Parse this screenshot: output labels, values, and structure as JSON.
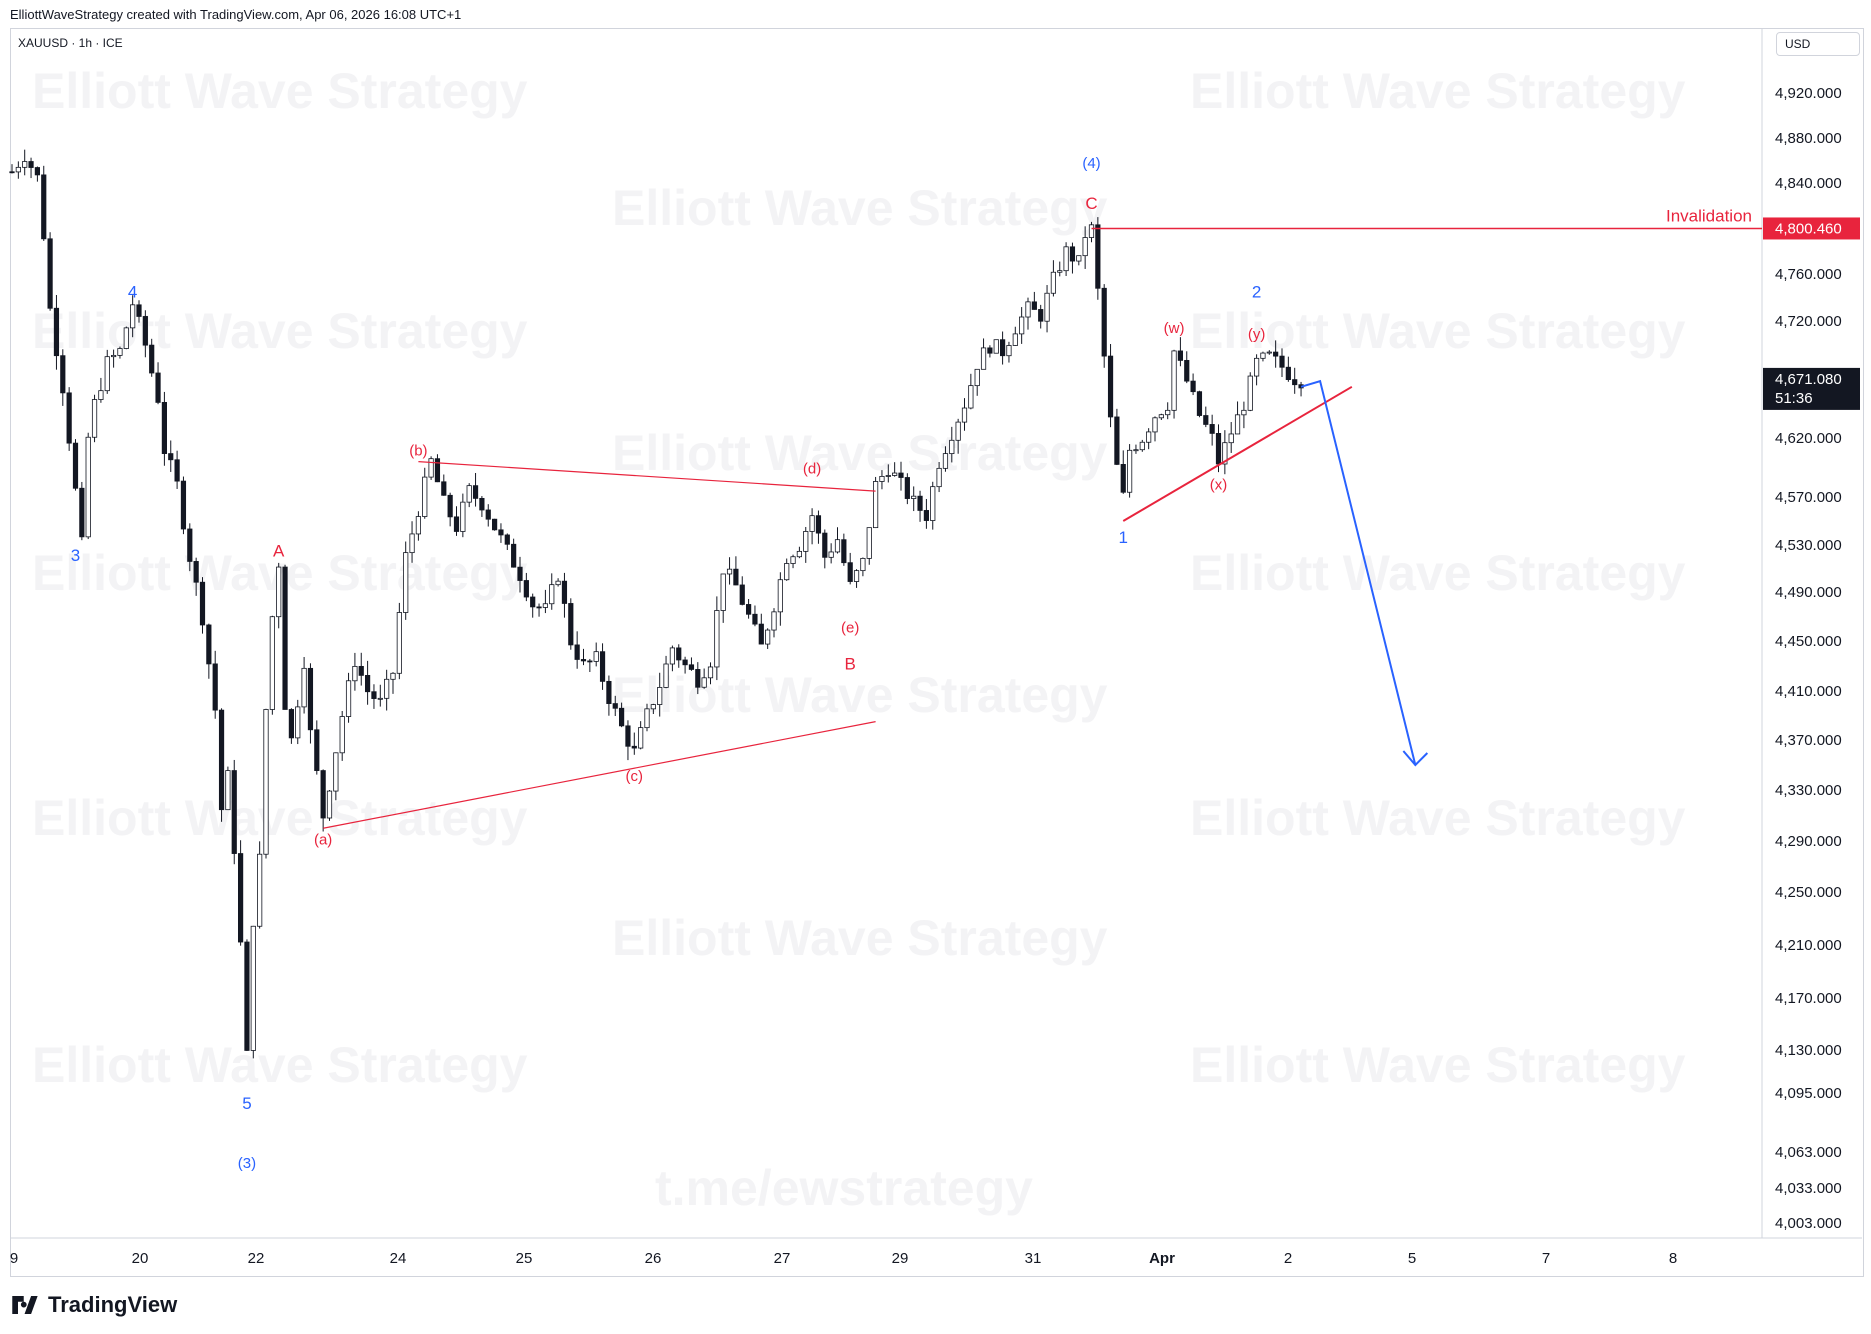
{
  "header": {
    "attribution": "ElliottWaveStrategy created with TradingView.com, Apr 06, 2026 16:08 UTC+1"
  },
  "symbol": {
    "label": "XAUUSD · 1h · ICE"
  },
  "currency": {
    "label": "USD"
  },
  "watermark": {
    "text": "Elliott Wave Strategy",
    "link": "t.me/ewstrategy"
  },
  "branding": {
    "name": "TradingView"
  },
  "colors": {
    "up": "#131722",
    "down": "#131722",
    "red": "#e8243d",
    "blue": "#2962ff",
    "grid": "#f0f3fa"
  },
  "chart_data": {
    "type": "candlestick",
    "instrument": "XAUUSD",
    "timeframe": "1h",
    "y_axis": {
      "ticks": [
        "4,920.000",
        "4,880.000",
        "4,840.000",
        "4,760.000",
        "4,720.000",
        "4,620.000",
        "4,570.000",
        "4,530.000",
        "4,490.000",
        "4,450.000",
        "4,410.000",
        "4,370.000",
        "4,330.000",
        "4,290.000",
        "4,250.000",
        "4,210.000",
        "4,170.000",
        "4,130.000",
        "4,095.000",
        "4,063.000",
        "4,033.000",
        "4,003.000"
      ],
      "range": [
        3990,
        4950
      ]
    },
    "x_axis": {
      "ticks": [
        "9",
        "20",
        "22",
        "24",
        "25",
        "26",
        "27",
        "29",
        "31",
        "Apr",
        "2",
        "5",
        "7",
        "8"
      ]
    },
    "current_price": {
      "label": "4,671.080",
      "countdown": "51:36",
      "value": 4671.08
    },
    "invalidation": {
      "label": "Invalidation",
      "price_label": "4,800.460",
      "value": 4800.46
    },
    "path": [
      [
        0,
        4850
      ],
      [
        2,
        4865
      ],
      [
        4,
        4845
      ],
      [
        5,
        4795
      ],
      [
        6,
        4730
      ],
      [
        8,
        4665
      ],
      [
        10,
        4575
      ],
      [
        11,
        4530
      ],
      [
        12,
        4620
      ],
      [
        13,
        4650
      ],
      [
        15,
        4685
      ],
      [
        17,
        4695
      ],
      [
        19,
        4735
      ],
      [
        21,
        4700
      ],
      [
        23,
        4655
      ],
      [
        24,
        4610
      ],
      [
        26,
        4580
      ],
      [
        28,
        4520
      ],
      [
        30,
        4470
      ],
      [
        32,
        4395
      ],
      [
        33,
        4315
      ],
      [
        34,
        4340
      ],
      [
        35,
        4285
      ],
      [
        36,
        4210
      ],
      [
        37,
        4125
      ],
      [
        38,
        4230
      ],
      [
        39,
        4275
      ],
      [
        40,
        4395
      ],
      [
        41,
        4470
      ],
      [
        42,
        4515
      ],
      [
        43,
        4400
      ],
      [
        44,
        4370
      ],
      [
        46,
        4435
      ],
      [
        47,
        4375
      ],
      [
        49,
        4310
      ],
      [
        50,
        4335
      ],
      [
        52,
        4390
      ],
      [
        54,
        4435
      ],
      [
        56,
        4410
      ],
      [
        58,
        4400
      ],
      [
        60,
        4425
      ],
      [
        62,
        4520
      ],
      [
        64,
        4560
      ],
      [
        66,
        4600
      ],
      [
        68,
        4565
      ],
      [
        70,
        4545
      ],
      [
        72,
        4575
      ],
      [
        74,
        4565
      ],
      [
        76,
        4545
      ],
      [
        78,
        4525
      ],
      [
        80,
        4505
      ],
      [
        82,
        4480
      ],
      [
        84,
        4475
      ],
      [
        86,
        4505
      ],
      [
        88,
        4450
      ],
      [
        90,
        4430
      ],
      [
        92,
        4435
      ],
      [
        94,
        4405
      ],
      [
        96,
        4380
      ],
      [
        98,
        4360
      ],
      [
        100,
        4390
      ],
      [
        102,
        4415
      ],
      [
        104,
        4445
      ],
      [
        106,
        4430
      ],
      [
        108,
        4420
      ],
      [
        110,
        4435
      ],
      [
        112,
        4510
      ],
      [
        114,
        4495
      ],
      [
        116,
        4470
      ],
      [
        118,
        4445
      ],
      [
        120,
        4480
      ],
      [
        122,
        4520
      ],
      [
        124,
        4530
      ],
      [
        126,
        4555
      ],
      [
        128,
        4520
      ],
      [
        130,
        4535
      ],
      [
        132,
        4495
      ],
      [
        134,
        4515
      ],
      [
        136,
        4580
      ],
      [
        138,
        4595
      ],
      [
        140,
        4580
      ],
      [
        142,
        4565
      ],
      [
        144,
        4555
      ],
      [
        146,
        4600
      ],
      [
        148,
        4625
      ],
      [
        150,
        4650
      ],
      [
        152,
        4685
      ],
      [
        154,
        4700
      ],
      [
        156,
        4695
      ],
      [
        158,
        4715
      ],
      [
        160,
        4730
      ],
      [
        162,
        4725
      ],
      [
        164,
        4755
      ],
      [
        166,
        4780
      ],
      [
        168,
        4770
      ],
      [
        169,
        4795
      ],
      [
        170,
        4800
      ],
      [
        171,
        4745
      ],
      [
        172,
        4690
      ],
      [
        173,
        4635
      ],
      [
        174,
        4595
      ],
      [
        175,
        4570
      ],
      [
        176,
        4610
      ],
      [
        178,
        4620
      ],
      [
        180,
        4640
      ],
      [
        182,
        4650
      ],
      [
        183,
        4695
      ],
      [
        185,
        4670
      ],
      [
        187,
        4640
      ],
      [
        189,
        4620
      ],
      [
        190,
        4600
      ],
      [
        192,
        4625
      ],
      [
        194,
        4650
      ],
      [
        196,
        4685
      ],
      [
        198,
        4690
      ],
      [
        200,
        4682
      ],
      [
        202,
        4672
      ],
      [
        203,
        4671
      ]
    ],
    "wave_labels": [
      {
        "text": "3",
        "color": "blue",
        "at": [
          10,
          4530
        ],
        "pos": "below"
      },
      {
        "text": "4",
        "color": "blue",
        "at": [
          19,
          4735
        ],
        "pos": "above"
      },
      {
        "text": "5",
        "color": "blue",
        "at": [
          37,
          4095
        ],
        "pos": "below"
      },
      {
        "text": "(3)",
        "color": "blue",
        "at": [
          37,
          4063
        ],
        "pos": "below"
      },
      {
        "text": "A",
        "color": "red",
        "at": [
          42,
          4515
        ],
        "pos": "above"
      },
      {
        "text": "(a)",
        "color": "red",
        "at": [
          49,
          4300
        ],
        "pos": "below"
      },
      {
        "text": "(b)",
        "color": "red",
        "at": [
          64,
          4600
        ],
        "pos": "above"
      },
      {
        "text": "(c)",
        "color": "red",
        "at": [
          98,
          4350
        ],
        "pos": "below"
      },
      {
        "text": "(d)",
        "color": "red",
        "at": [
          126,
          4585
        ],
        "pos": "above"
      },
      {
        "text": "(e)",
        "color": "red",
        "at": [
          132,
          4470
        ],
        "pos": "below"
      },
      {
        "text": "B",
        "color": "red",
        "at": [
          132,
          4440
        ],
        "pos": "below"
      },
      {
        "text": "C",
        "color": "red",
        "at": [
          170,
          4812
        ],
        "pos": "above"
      },
      {
        "text": "(4)",
        "color": "blue",
        "at": [
          170,
          4848
        ],
        "pos": "above"
      },
      {
        "text": "1",
        "color": "blue",
        "at": [
          175,
          4545
        ],
        "pos": "below"
      },
      {
        "text": "(w)",
        "color": "red",
        "at": [
          183,
          4705
        ],
        "pos": "above"
      },
      {
        "text": "(x)",
        "color": "red",
        "at": [
          190,
          4590
        ],
        "pos": "below"
      },
      {
        "text": "(y)",
        "color": "red",
        "at": [
          196,
          4700
        ],
        "pos": "above"
      },
      {
        "text": "2",
        "color": "blue",
        "at": [
          196,
          4735
        ],
        "pos": "above"
      }
    ],
    "trendlines": [
      {
        "color": "red",
        "from": [
          64,
          4600
        ],
        "to": [
          136,
          4575
        ]
      },
      {
        "color": "red",
        "from": [
          49,
          4300
        ],
        "to": [
          136,
          4385
        ]
      },
      {
        "color": "red",
        "from": [
          175,
          4550
        ],
        "to": [
          211,
          4665
        ]
      }
    ],
    "projection": {
      "color": "blue",
      "path": [
        [
          203,
          4665
        ],
        [
          206,
          4670
        ],
        [
          221,
          4350
        ]
      ]
    }
  }
}
